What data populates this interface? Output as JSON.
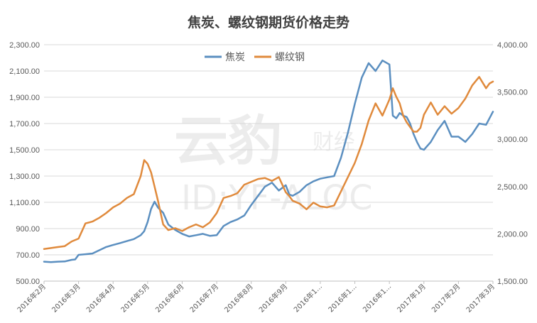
{
  "chart_data": {
    "type": "line",
    "title": "焦炭、螺纹钢期货价格走势",
    "watermark": [
      "云豹",
      "财经",
      "ID:YF-ALOC"
    ],
    "x_tick_labels": [
      "2016年2月",
      "2016年3月",
      "2016年4月",
      "2016年5月",
      "2016年6月",
      "2016年7月",
      "2016年8月",
      "2016年9月",
      "2016年1...",
      "2016年1...",
      "2016年1...",
      "2017年1月",
      "2017年2月",
      "2017年3月"
    ],
    "y_left": {
      "ticks": [
        "2,300.00",
        "2,100.00",
        "1,900.00",
        "1,700.00",
        "1,500.00",
        "1,300.00",
        "1,100.00",
        "900.00",
        "700.00",
        "500.00"
      ],
      "lim": [
        500,
        2300
      ]
    },
    "y_right": {
      "ticks": [
        "4,000.00",
        "3,500.00",
        "3,000.00",
        "2,500.00",
        "2,000.00",
        "1,500.00"
      ],
      "lim": [
        1500,
        4000
      ]
    },
    "grid": true,
    "legend_position": "top-center",
    "series": [
      {
        "name": "焦炭",
        "axis": "left",
        "color": "#5b8fc0",
        "x": [
          0,
          0.2,
          0.4,
          0.6,
          0.8,
          0.9,
          1.0,
          1.2,
          1.4,
          1.6,
          1.8,
          2.0,
          2.2,
          2.4,
          2.6,
          2.8,
          2.9,
          3.0,
          3.1,
          3.2,
          3.3,
          3.45,
          3.6,
          3.8,
          4.0,
          4.2,
          4.4,
          4.6,
          4.8,
          5.0,
          5.2,
          5.4,
          5.6,
          5.8,
          6.0,
          6.2,
          6.4,
          6.6,
          6.8,
          7.0,
          7.1,
          7.2,
          7.4,
          7.6,
          7.8,
          8.0,
          8.2,
          8.4,
          8.6,
          8.8,
          9.0,
          9.2,
          9.4,
          9.6,
          9.8,
          10.0,
          10.1,
          10.2,
          10.3,
          10.4,
          10.5,
          10.6,
          10.7,
          10.8,
          10.9,
          11.0,
          11.2,
          11.4,
          11.6,
          11.8,
          12.0,
          12.2,
          12.4,
          12.6,
          12.8,
          13.0
        ],
        "y": [
          648,
          645,
          648,
          650,
          662,
          665,
          700,
          705,
          710,
          735,
          760,
          775,
          790,
          805,
          820,
          850,
          880,
          950,
          1050,
          1105,
          1060,
          1020,
          930,
          890,
          860,
          840,
          850,
          860,
          845,
          850,
          920,
          950,
          970,
          1000,
          1080,
          1150,
          1220,
          1250,
          1190,
          1230,
          1160,
          1150,
          1180,
          1230,
          1260,
          1280,
          1290,
          1300,
          1440,
          1630,
          1850,
          2050,
          2160,
          2100,
          2180,
          2150,
          1760,
          1740,
          1780,
          1760,
          1750,
          1700,
          1620,
          1560,
          1510,
          1500,
          1560,
          1650,
          1720,
          1600,
          1600,
          1560,
          1620,
          1700,
          1690,
          1790
        ]
      },
      {
        "name": "螺纹钢",
        "axis": "right",
        "color": "#e08a3c",
        "x": [
          0,
          0.2,
          0.4,
          0.6,
          0.8,
          1.0,
          1.2,
          1.4,
          1.6,
          1.8,
          2.0,
          2.2,
          2.4,
          2.6,
          2.8,
          2.9,
          3.0,
          3.1,
          3.2,
          3.3,
          3.45,
          3.6,
          3.8,
          4.0,
          4.2,
          4.4,
          4.6,
          4.8,
          5.0,
          5.2,
          5.4,
          5.6,
          5.8,
          6.0,
          6.2,
          6.4,
          6.6,
          6.8,
          7.0,
          7.1,
          7.2,
          7.4,
          7.6,
          7.8,
          8.0,
          8.2,
          8.4,
          8.6,
          8.8,
          9.0,
          9.2,
          9.4,
          9.6,
          9.8,
          10.0,
          10.1,
          10.2,
          10.3,
          10.4,
          10.5,
          10.6,
          10.7,
          10.8,
          10.9,
          11.0,
          11.2,
          11.4,
          11.6,
          11.8,
          12.0,
          12.2,
          12.4,
          12.6,
          12.8,
          12.9,
          13.0
        ],
        "y": [
          1840,
          1850,
          1860,
          1870,
          1920,
          1950,
          2110,
          2130,
          2170,
          2220,
          2280,
          2320,
          2380,
          2420,
          2610,
          2780,
          2740,
          2650,
          2500,
          2350,
          2100,
          2040,
          2060,
          2030,
          2070,
          2100,
          2070,
          2120,
          2220,
          2380,
          2400,
          2430,
          2520,
          2550,
          2580,
          2590,
          2560,
          2600,
          2440,
          2400,
          2350,
          2320,
          2260,
          2330,
          2290,
          2280,
          2300,
          2450,
          2600,
          2750,
          2950,
          3200,
          3380,
          3250,
          3420,
          3540,
          3450,
          3380,
          3250,
          3180,
          3130,
          3080,
          3080,
          3120,
          3260,
          3390,
          3260,
          3350,
          3270,
          3330,
          3430,
          3570,
          3660,
          3540,
          3590,
          3610
        ]
      }
    ]
  }
}
